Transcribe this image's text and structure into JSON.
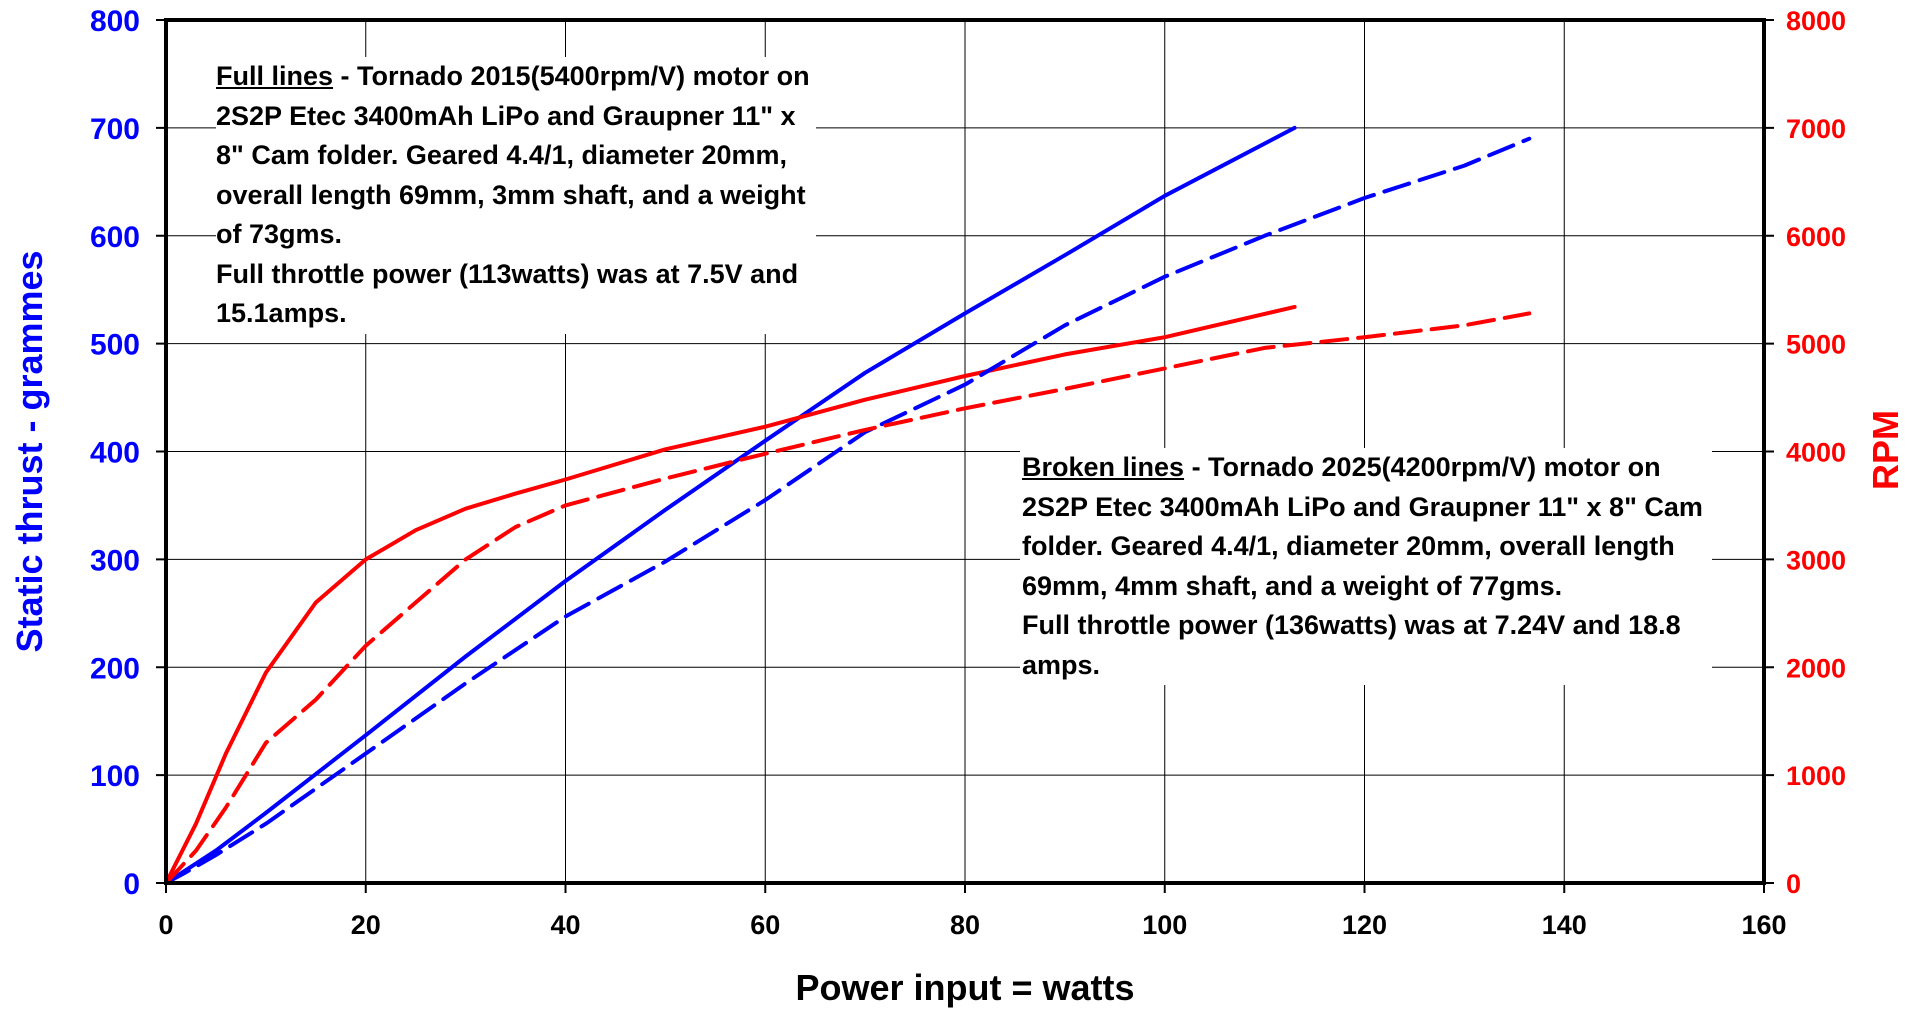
{
  "chart_data": {
    "type": "line",
    "xlabel": "Power input = watts",
    "ylabel_left": "Static thrust - grammes",
    "ylabel_right": "RPM",
    "xlim": [
      0,
      160
    ],
    "ylim_left": [
      0,
      800
    ],
    "ylim_right": [
      0,
      8000
    ],
    "x_ticks": [
      "0",
      "20",
      "40",
      "60",
      "80",
      "100",
      "120",
      "140",
      "160"
    ],
    "y_ticks_left": [
      "0",
      "100",
      "200",
      "300",
      "400",
      "500",
      "600",
      "700",
      "800"
    ],
    "y_ticks_right": [
      "0",
      "1000",
      "2000",
      "3000",
      "4000",
      "5000",
      "6000",
      "7000",
      "8000"
    ],
    "grid": true,
    "colors": {
      "thrust": "#0000FF",
      "rpm": "#FF0000",
      "axes": "#000000",
      "grid": "#000000"
    },
    "series": [
      {
        "motor": "Tornado 2015",
        "quantity": "thrust",
        "axis": "left",
        "style": "solid",
        "x": [
          0,
          2,
          5,
          10,
          20,
          30,
          40,
          50,
          60,
          70,
          80,
          90,
          100,
          113
        ],
        "y": [
          0,
          12,
          30,
          65,
          137,
          210,
          280,
          346,
          410,
          473,
          528,
          582,
          637,
          700
        ]
      },
      {
        "motor": "Tornado 2015",
        "quantity": "rpm",
        "axis": "right",
        "style": "solid",
        "x": [
          0,
          3,
          6,
          10,
          15,
          20,
          25,
          30,
          35,
          40,
          50,
          60,
          70,
          80,
          90,
          100,
          113
        ],
        "y": [
          0,
          550,
          1200,
          1950,
          2600,
          3000,
          3270,
          3470,
          3610,
          3740,
          4020,
          4230,
          4480,
          4700,
          4900,
          5060,
          5340
        ]
      },
      {
        "motor": "Tornado 2025",
        "quantity": "thrust",
        "axis": "left",
        "style": "dashed",
        "x": [
          0,
          2,
          5,
          10,
          20,
          30,
          40,
          50,
          60,
          70,
          80,
          90,
          100,
          110,
          120,
          130,
          136.5
        ],
        "y": [
          0,
          10,
          26,
          55,
          120,
          185,
          247,
          298,
          355,
          418,
          462,
          517,
          562,
          600,
          635,
          665,
          690
        ]
      },
      {
        "motor": "Tornado 2025",
        "quantity": "rpm",
        "axis": "right",
        "style": "dashed",
        "x": [
          0,
          3,
          6,
          10,
          15,
          20,
          25,
          30,
          35,
          40,
          50,
          60,
          70,
          80,
          90,
          100,
          110,
          120,
          130,
          136.5
        ],
        "y": [
          0,
          300,
          700,
          1300,
          1700,
          2200,
          2600,
          3000,
          3300,
          3500,
          3750,
          3980,
          4200,
          4400,
          4580,
          4770,
          4960,
          5060,
          5170,
          5280
        ]
      }
    ],
    "annotations": [
      {
        "id": "full",
        "lead": "Full lines",
        "rest": " - Tornado 2015(5400rpm/V) motor on 2S2P Etec 3400mAh LiPo and Graupner 11\" x 8\" Cam folder. Geared 4.4/1, diameter 20mm, overall length 69mm, 3mm shaft, and a weight of 73gms.",
        "power": "Full throttle power (113watts) was at 7.5V and 15.1amps."
      },
      {
        "id": "broken",
        "lead": "Broken lines",
        "rest": " - Tornado 2025(4200rpm/V) motor on 2S2P Etec 3400mAh LiPo and Graupner 11\" x 8\" Cam folder. Geared 4.4/1, diameter 20mm, overall length 69mm, 4mm shaft, and a weight of 77gms.",
        "power": "Full throttle power (136watts) was at 7.24V and 18.8 amps."
      }
    ]
  }
}
